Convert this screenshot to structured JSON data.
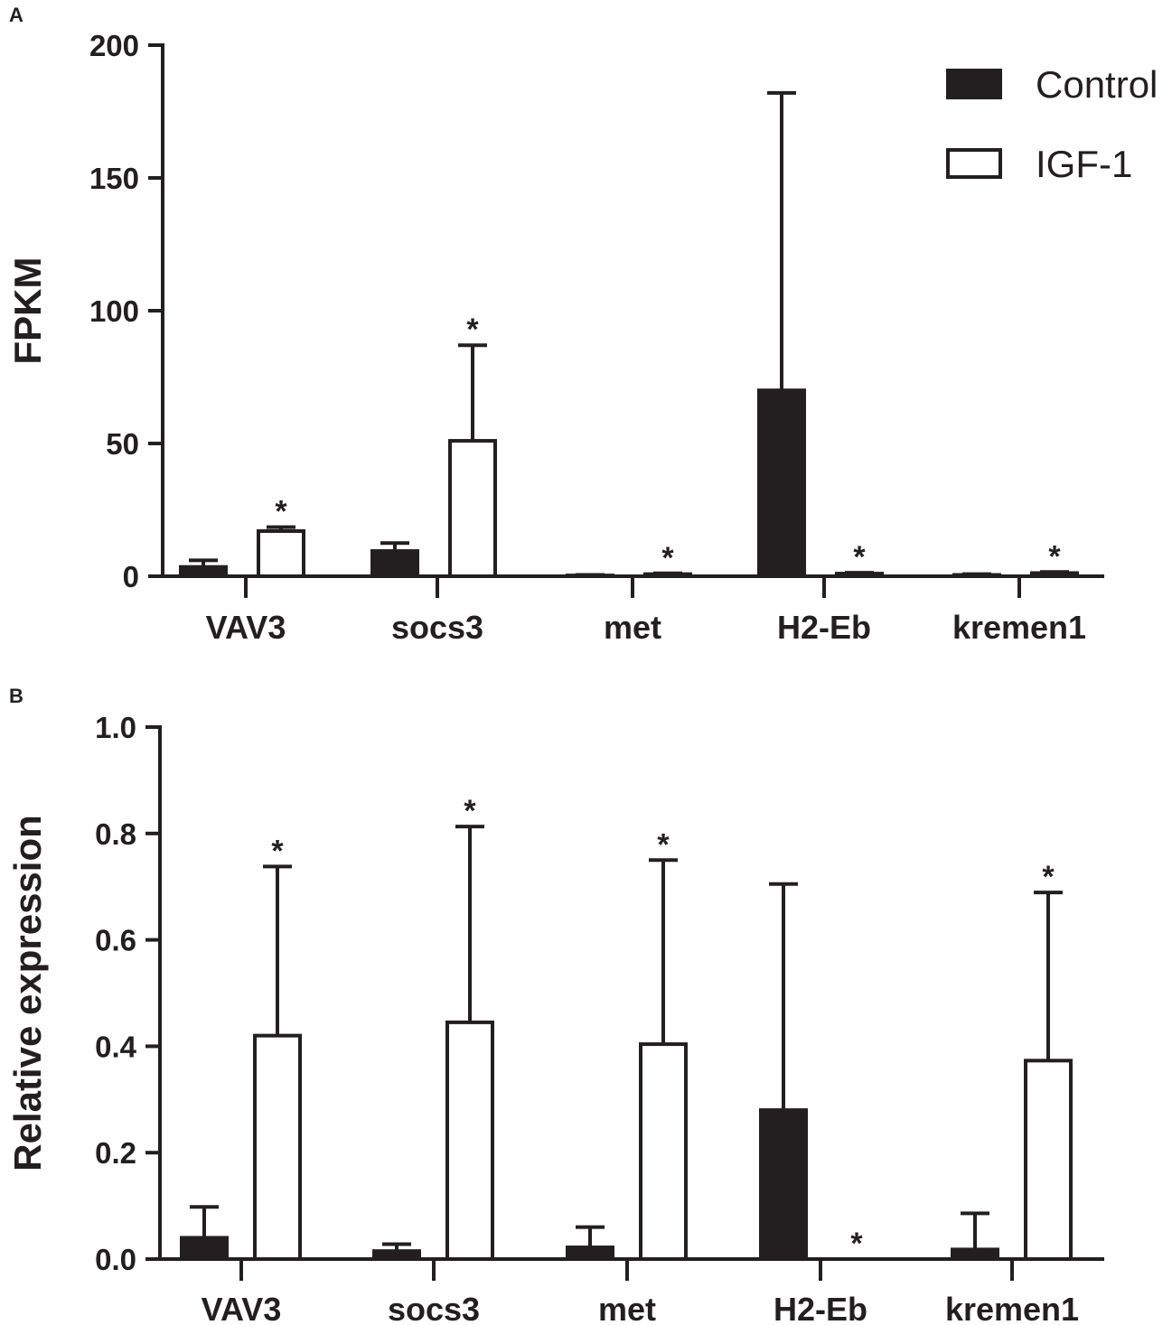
{
  "chart_data": [
    {
      "panel": "A",
      "type": "bar",
      "ylabel": "FPKM",
      "xlabel": "",
      "ylim": [
        0,
        200
      ],
      "yticks": [
        0,
        50,
        100,
        150,
        200
      ],
      "ytick_labels": [
        "0",
        "50",
        "100",
        "150",
        "200"
      ],
      "categories": [
        "VAV3",
        "socs3",
        "met",
        "H2-Eb",
        "kremen1"
      ],
      "series": [
        {
          "name": "Control",
          "color": "#231f20",
          "values": [
            3.5,
            9.5,
            0.3,
            70,
            0.5
          ],
          "errors": [
            2.5,
            3,
            0.2,
            112,
            0.3
          ]
        },
        {
          "name": "IGF-1",
          "color": "#ffffff",
          "values": [
            17,
            51,
            0.8,
            1.0,
            1.2
          ],
          "errors": [
            1.5,
            36,
            0.3,
            0.3,
            0.4
          ]
        }
      ],
      "significance": [
        "*",
        "*",
        "*",
        "*",
        "*"
      ],
      "legend": {
        "position": "top-right",
        "entries": [
          "Control",
          "IGF-1"
        ]
      }
    },
    {
      "panel": "B",
      "type": "bar",
      "ylabel": "Relative expression",
      "xlabel": "",
      "ylim": [
        0,
        1.0
      ],
      "yticks": [
        0,
        0.2,
        0.4,
        0.6,
        0.8,
        1.0
      ],
      "ytick_labels": [
        "0.0",
        "0.2",
        "0.4",
        "0.6",
        "0.8",
        "1.0"
      ],
      "categories": [
        "VAV3",
        "socs3",
        "met",
        "H2-Eb",
        "kremen1"
      ],
      "series": [
        {
          "name": "Control",
          "color": "#231f20",
          "values": [
            0.04,
            0.015,
            0.022,
            0.28,
            0.018
          ],
          "errors": [
            0.058,
            0.013,
            0.038,
            0.425,
            0.068
          ]
        },
        {
          "name": "IGF-1",
          "color": "#ffffff",
          "values": [
            0.42,
            0.445,
            0.404,
            0.0,
            0.373
          ],
          "errors": [
            0.318,
            0.368,
            0.346,
            0.0,
            0.316
          ]
        }
      ],
      "significance": [
        "*",
        "*",
        "*",
        "*",
        "*"
      ]
    }
  ]
}
